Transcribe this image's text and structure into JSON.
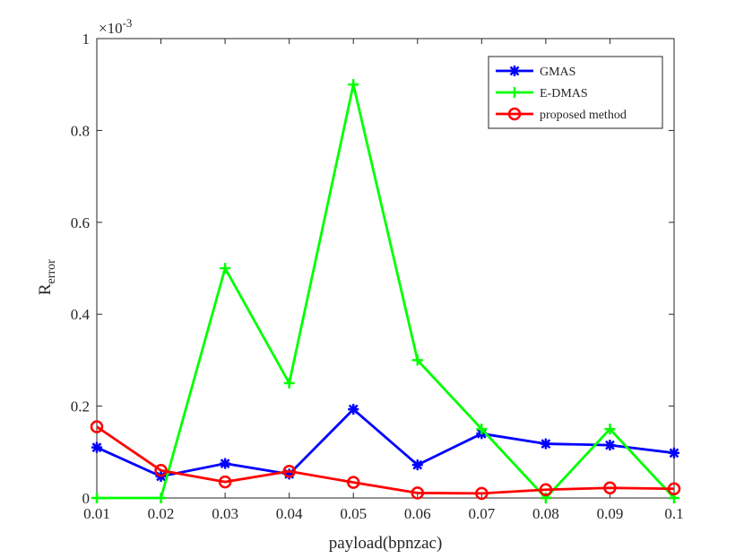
{
  "chart_data": {
    "type": "line",
    "xlabel": "payload(bpnzac)",
    "ylabel": {
      "main": "R",
      "subscript": "error"
    },
    "y_exponent_label": {
      "base": "×10",
      "exponent": "-3"
    },
    "x": [
      0.01,
      0.02,
      0.03,
      0.04,
      0.05,
      0.06,
      0.07,
      0.08,
      0.09,
      0.1
    ],
    "x_tick_labels": [
      "0.01",
      "0.02",
      "0.03",
      "0.04",
      "0.05",
      "0.06",
      "0.07",
      "0.08",
      "0.09",
      "0.1"
    ],
    "y_ticks": [
      0,
      0.2,
      0.4,
      0.6,
      0.8,
      1
    ],
    "y_tick_labels": [
      "0",
      "0.2",
      "0.4",
      "0.6",
      "0.8",
      "1"
    ],
    "xlim": [
      0.01,
      0.1
    ],
    "ylim": [
      0,
      1
    ],
    "y_units_scale": "1e-3",
    "grid": false,
    "legend_position": "top-right",
    "series": [
      {
        "name": "GMAS",
        "color": "#0000ff",
        "marker": "asterisk",
        "values": [
          0.11,
          0.047,
          0.075,
          0.052,
          0.193,
          0.072,
          0.14,
          0.118,
          0.115,
          0.098
        ]
      },
      {
        "name": "E-DMAS",
        "color": "#00ff00",
        "marker": "plus",
        "values": [
          0.0,
          0.0,
          0.5,
          0.25,
          0.9,
          0.3,
          0.15,
          0.0,
          0.15,
          0.0
        ]
      },
      {
        "name": "proposed method",
        "color": "#ff0000",
        "marker": "circle",
        "values": [
          0.155,
          0.06,
          0.035,
          0.058,
          0.034,
          0.011,
          0.01,
          0.018,
          0.022,
          0.02
        ]
      }
    ]
  }
}
